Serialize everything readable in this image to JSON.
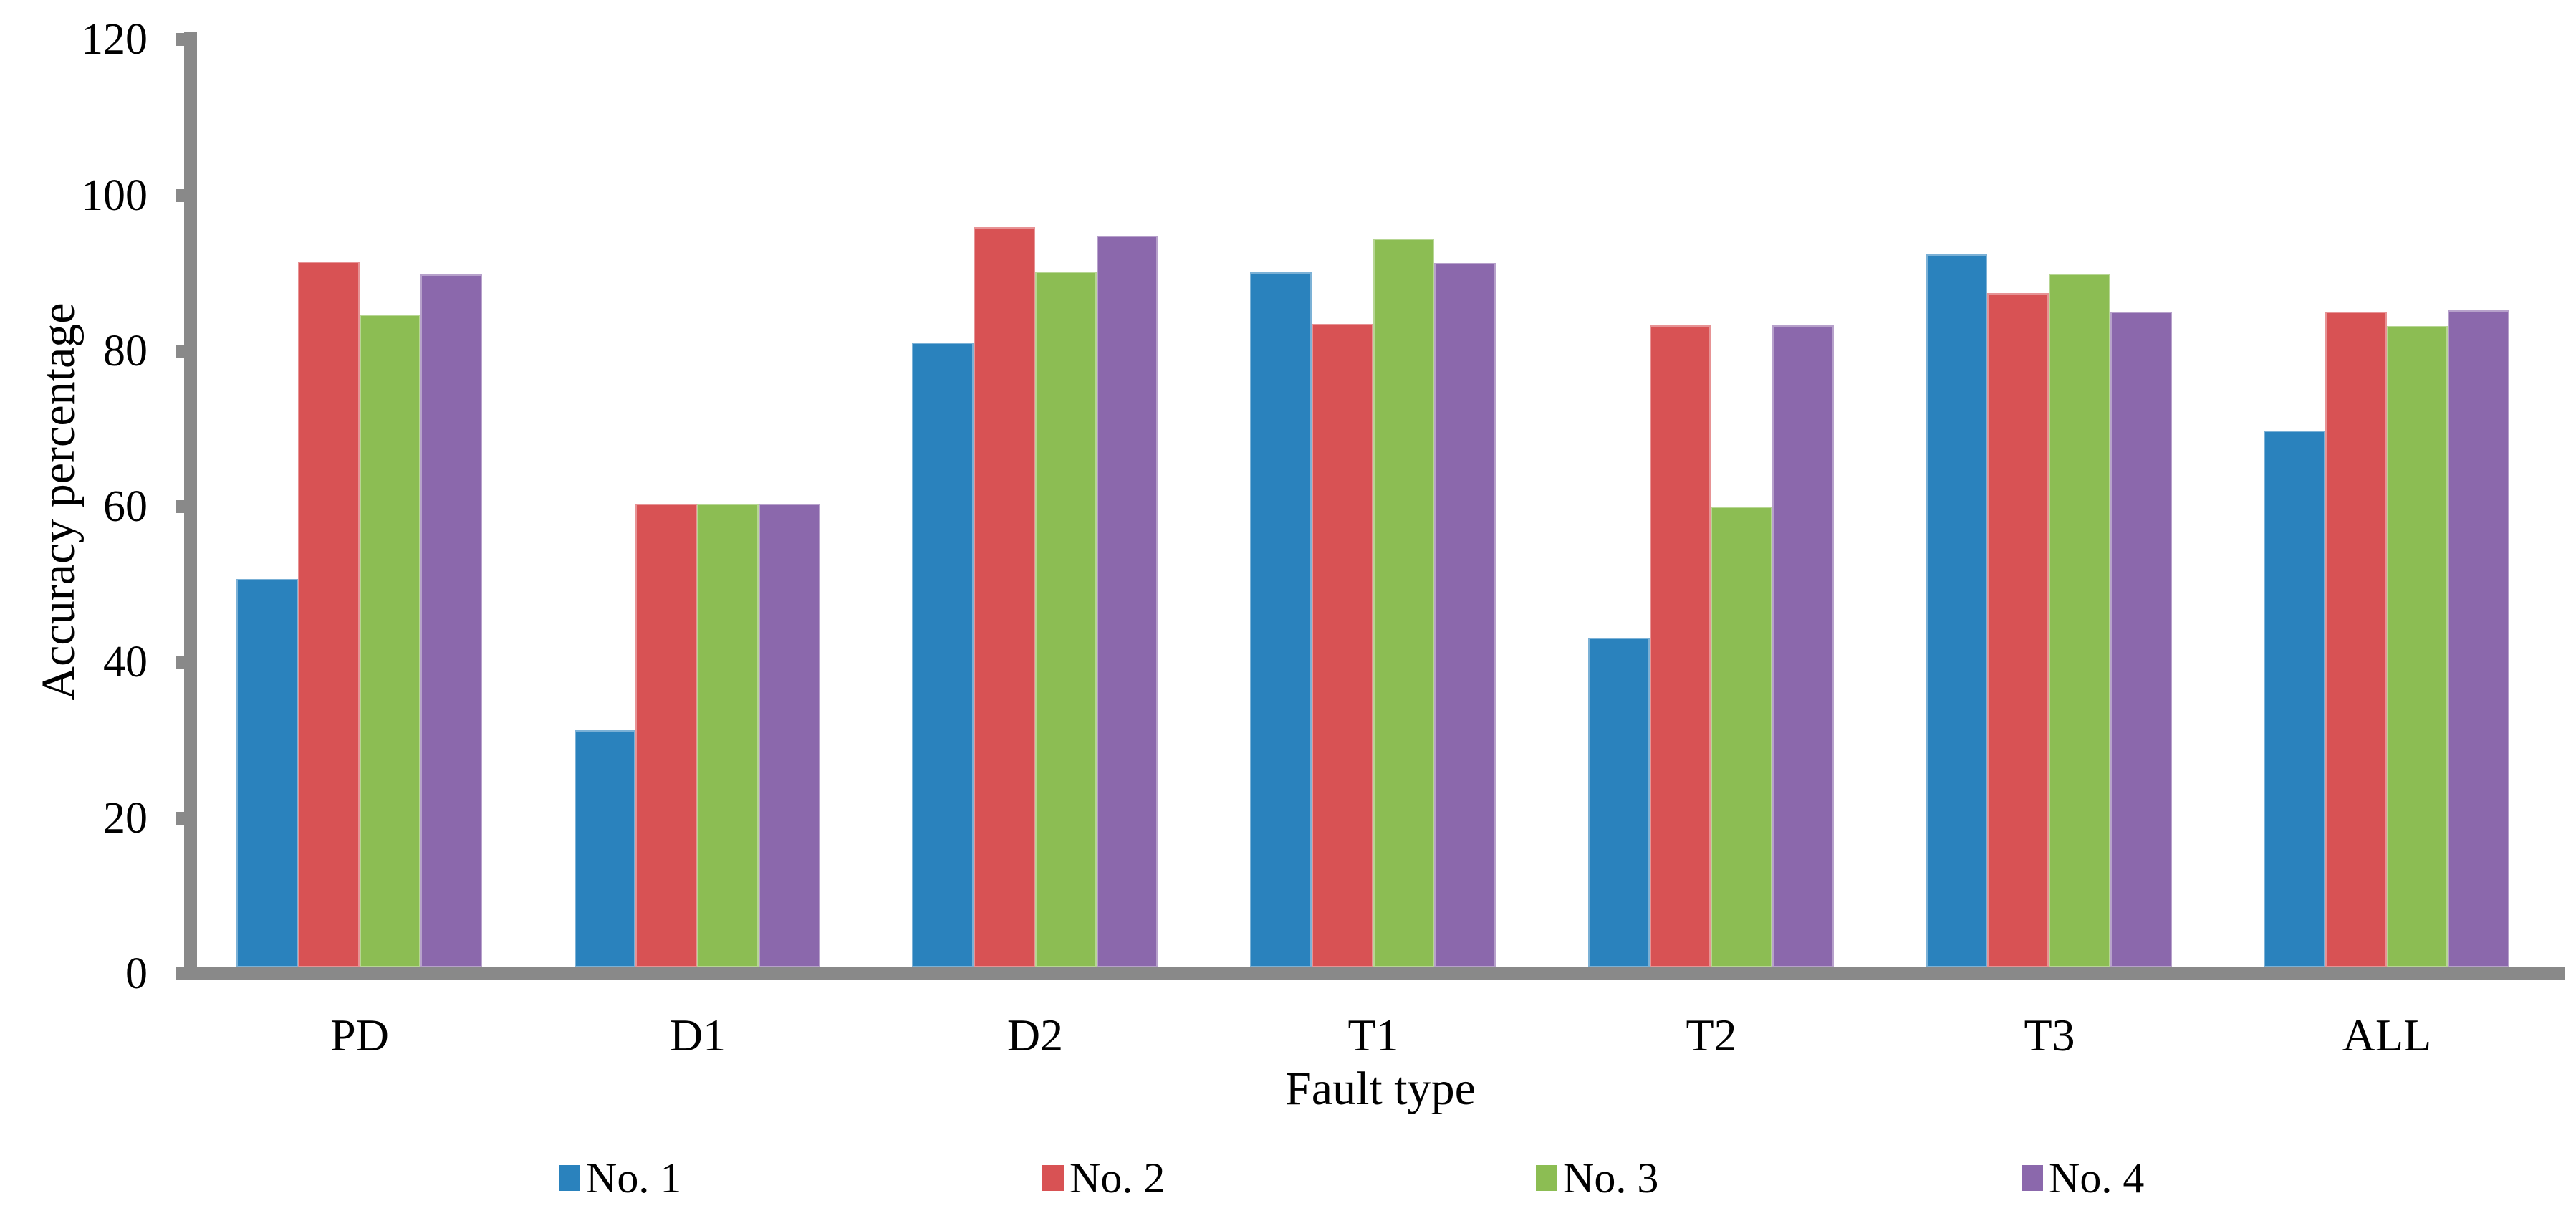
{
  "chart_data": {
    "type": "bar",
    "title": "",
    "xlabel": "Fault type",
    "ylabel": "Accuracy percentage",
    "categories": [
      "PD",
      "D1",
      "D2",
      "T1",
      "T2",
      "T3",
      "ALL"
    ],
    "series": [
      {
        "name": "No. 1",
        "color": "#2A82BD",
        "values": [
          50.7,
          31.3,
          81.1,
          90.1,
          43.2,
          92.4,
          69.8
        ]
      },
      {
        "name": "No. 2",
        "color": "#D85254",
        "values": [
          91.5,
          60.4,
          95.9,
          83.5,
          83.3,
          87.4,
          85.0
        ]
      },
      {
        "name": "No. 3",
        "color": "#8CBD53",
        "values": [
          84.7,
          60.4,
          90.2,
          94.4,
          60.0,
          89.9,
          83.2
        ]
      },
      {
        "name": "No. 4",
        "color": "#8B68AC",
        "values": [
          89.8,
          60.4,
          94.8,
          91.3,
          83.3,
          85.0,
          85.2
        ]
      }
    ],
    "ylim": [
      0,
      120
    ],
    "yticks": [
      0,
      20,
      40,
      60,
      80,
      100,
      120
    ],
    "grid": false,
    "legend_position": "bottom",
    "axis_color": "#898989",
    "background_color": "#FFFFFF"
  }
}
